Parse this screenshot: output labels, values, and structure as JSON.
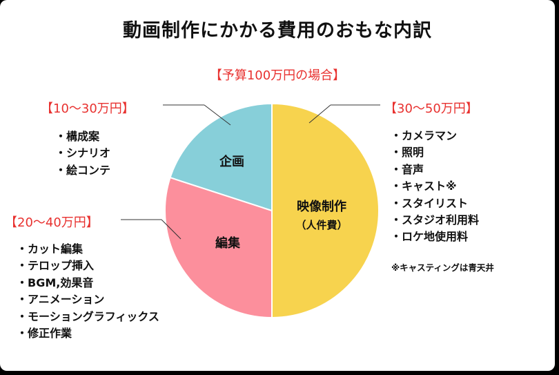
{
  "title": "動画制作にかかる費用のおもな内訳",
  "budget_label": "【予算100万円の場合】",
  "note": "※キャスティングは青天井",
  "chart_data": {
    "type": "pie",
    "title": "動画制作にかかる費用のおもな内訳",
    "slices": [
      {
        "label": "映像制作",
        "sublabel": "（人件費）",
        "value": 50,
        "color": "#f7d34e",
        "range": "【30〜50万円】",
        "items": [
          "カメラマン",
          "照明",
          "音声",
          "キャスト※",
          "スタイリスト",
          "スタジオ利用料",
          "ロケ地使用料"
        ]
      },
      {
        "label": "編集",
        "value": 30,
        "color": "#fc8f9c",
        "range": "【20〜40万円】",
        "items": [
          "カット編集",
          "テロップ挿入",
          "BGM,効果音",
          "アニメーション",
          "モーショングラフィックス",
          "修正作業"
        ]
      },
      {
        "label": "企画",
        "value": 20,
        "color": "#87cfd9",
        "range": "【10〜30万円】",
        "items": [
          "構成案",
          "シナリオ",
          "絵コンテ"
        ]
      }
    ]
  }
}
